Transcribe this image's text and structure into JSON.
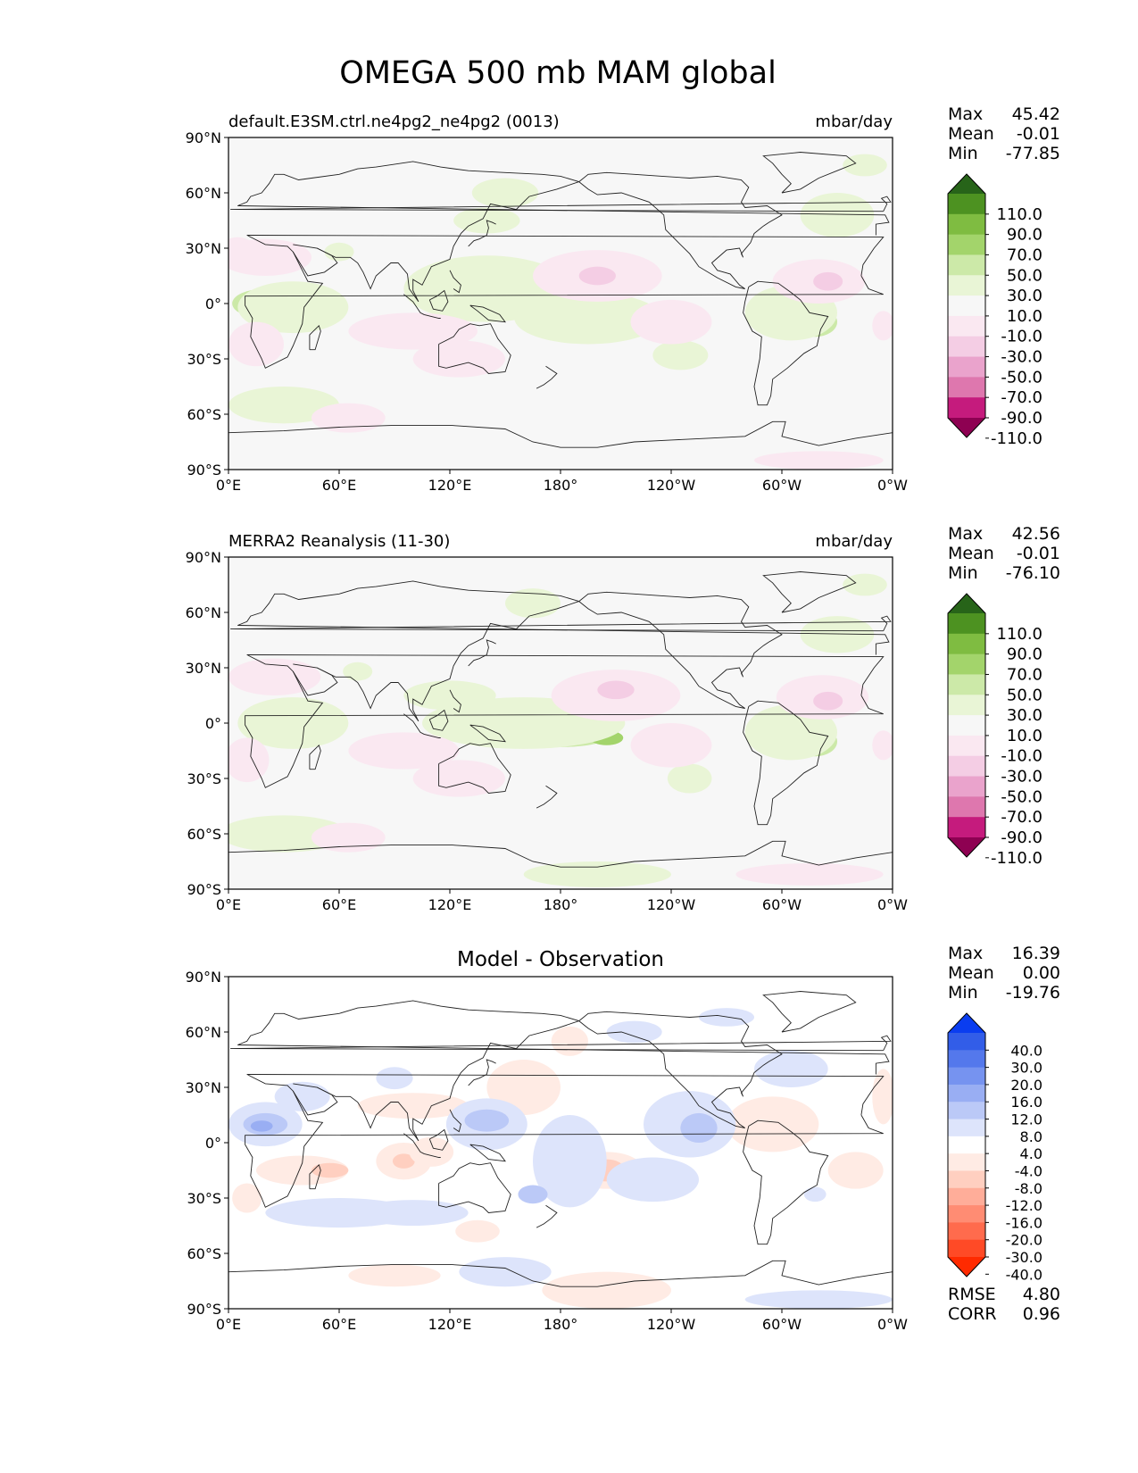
{
  "title": "OMEGA 500 mb MAM global",
  "lat_ticks": [
    "90°N",
    "60°N",
    "30°N",
    "0°",
    "30°S",
    "60°S",
    "90°S"
  ],
  "lon_ticks": [
    "0°E",
    "60°E",
    "120°E",
    "180°",
    "120°W",
    "60°W",
    "0°W"
  ],
  "stat_labels": {
    "max": "Max",
    "mean": "Mean",
    "min": "Min",
    "rmse": "RMSE",
    "corr": "CORR"
  },
  "panels": [
    {
      "title_left": "default.E3SM.ctrl.ne4pg2_ne4pg2 (0013)",
      "title_center": "",
      "units": "mbar/day",
      "stats": {
        "max": "45.42",
        "mean": "-0.01",
        "min": "-77.85"
      },
      "colorbar": {
        "labels": [
          "110.0",
          "90.0",
          "70.0",
          "50.0",
          "30.0",
          "10.0",
          "-10.0",
          "-30.0",
          "-50.0",
          "-70.0",
          "-90.0",
          "-110.0"
        ],
        "colors": [
          "#8e0152",
          "#c51b7d",
          "#de77ae",
          "#eaa3cc",
          "#f4cde4",
          "#fae8f1",
          "#f7f7f7",
          "#e9f5d6",
          "#cce9a8",
          "#a3d46b",
          "#7fbc41",
          "#4d9221",
          "#276419"
        ]
      },
      "regions": [
        {
          "kind": "ascent",
          "level": 2,
          "lon": 20,
          "lat": 0,
          "rlon": 18,
          "rlat": 8
        },
        {
          "kind": "ascent",
          "level": 3,
          "lon": 24,
          "lat": 0,
          "rlon": 7,
          "rlat": 3
        },
        {
          "kind": "ascent",
          "level": 1,
          "lon": 35,
          "lat": -2,
          "rlon": 30,
          "rlat": 14
        },
        {
          "kind": "ascent",
          "level": 2,
          "lon": 145,
          "lat": 5,
          "rlon": 25,
          "rlat": 10
        },
        {
          "kind": "ascent",
          "level": 1,
          "lon": 140,
          "lat": 8,
          "rlon": 45,
          "rlat": 18
        },
        {
          "kind": "ascent",
          "level": 2,
          "lon": 200,
          "lat": -8,
          "rlon": 22,
          "rlat": 7
        },
        {
          "kind": "ascent",
          "level": 3,
          "lon": 205,
          "lat": -8,
          "rlon": 9,
          "rlat": 4
        },
        {
          "kind": "ascent",
          "level": 1,
          "lon": 195,
          "lat": -8,
          "rlon": 40,
          "rlat": 14
        },
        {
          "kind": "ascent",
          "level": 2,
          "lon": 318,
          "lat": -10,
          "rlon": 12,
          "rlat": 8
        },
        {
          "kind": "ascent",
          "level": 3,
          "lon": 320,
          "lat": -10,
          "rlon": 5,
          "rlat": 3
        },
        {
          "kind": "ascent",
          "level": 1,
          "lon": 305,
          "lat": -5,
          "rlon": 25,
          "rlat": 15
        },
        {
          "kind": "ascent",
          "level": 1,
          "lon": 30,
          "lat": -55,
          "rlon": 30,
          "rlat": 10
        },
        {
          "kind": "ascent",
          "level": 1,
          "lon": 140,
          "lat": 45,
          "rlon": 18,
          "rlat": 7
        },
        {
          "kind": "ascent",
          "level": 1,
          "lon": 60,
          "lat": 28,
          "rlon": 8,
          "rlat": 5
        },
        {
          "kind": "ascent",
          "level": 1,
          "lon": 150,
          "lat": 60,
          "rlon": 18,
          "rlat": 8
        },
        {
          "kind": "ascent",
          "level": 1,
          "lon": 245,
          "lat": -28,
          "rlon": 15,
          "rlat": 8
        },
        {
          "kind": "ascent",
          "level": 1,
          "lon": 330,
          "lat": 48,
          "rlon": 20,
          "rlat": 12
        },
        {
          "kind": "ascent",
          "level": 1,
          "lon": 345,
          "lat": 75,
          "rlon": 12,
          "rlat": 6
        },
        {
          "kind": "descent",
          "level": 1,
          "lon": 15,
          "lat": -22,
          "rlon": 15,
          "rlat": 12
        },
        {
          "kind": "descent",
          "level": 1,
          "lon": 20,
          "lat": 25,
          "rlon": 25,
          "rlat": 10
        },
        {
          "kind": "descent",
          "level": 1,
          "lon": 100,
          "lat": -15,
          "rlon": 35,
          "rlat": 10
        },
        {
          "kind": "descent",
          "level": 1,
          "lon": 125,
          "lat": -30,
          "rlon": 25,
          "rlat": 10
        },
        {
          "kind": "descent",
          "level": 1,
          "lon": 200,
          "lat": 15,
          "rlon": 35,
          "rlat": 14
        },
        {
          "kind": "descent",
          "level": 2,
          "lon": 200,
          "lat": 15,
          "rlon": 10,
          "rlat": 5
        },
        {
          "kind": "descent",
          "level": 1,
          "lon": 240,
          "lat": -10,
          "rlon": 22,
          "rlat": 12
        },
        {
          "kind": "descent",
          "level": 1,
          "lon": 320,
          "lat": 12,
          "rlon": 25,
          "rlat": 12
        },
        {
          "kind": "descent",
          "level": 2,
          "lon": 325,
          "lat": 12,
          "rlon": 8,
          "rlat": 5
        },
        {
          "kind": "descent",
          "level": 1,
          "lon": 65,
          "lat": -62,
          "rlon": 20,
          "rlat": 8
        },
        {
          "kind": "descent",
          "level": 1,
          "lon": 320,
          "lat": -85,
          "rlon": 35,
          "rlat": 5
        },
        {
          "kind": "descent",
          "level": 1,
          "lon": 5,
          "lat": 28,
          "rlon": 10,
          "rlat": 8
        },
        {
          "kind": "descent",
          "level": 1,
          "lon": 355,
          "lat": -12,
          "rlon": 6,
          "rlat": 8
        }
      ]
    },
    {
      "title_left": "MERRA2 Reanalysis (11-30)",
      "title_center": "",
      "units": "mbar/day",
      "stats": {
        "max": "42.56",
        "mean": "-0.01",
        "min": "-76.10"
      },
      "colorbar": {
        "labels": [
          "110.0",
          "90.0",
          "70.0",
          "50.0",
          "30.0",
          "10.0",
          "-10.0",
          "-30.0",
          "-50.0",
          "-70.0",
          "-90.0",
          "-110.0"
        ],
        "colors": [
          "#8e0152",
          "#c51b7d",
          "#de77ae",
          "#eaa3cc",
          "#f4cde4",
          "#fae8f1",
          "#f7f7f7",
          "#e9f5d6",
          "#cce9a8",
          "#a3d46b",
          "#7fbc41",
          "#4d9221",
          "#276419"
        ]
      },
      "regions": [
        {
          "kind": "ascent",
          "level": 2,
          "lon": 28,
          "lat": 0,
          "rlon": 15,
          "rlat": 8
        },
        {
          "kind": "ascent",
          "level": 3,
          "lon": 28,
          "lat": -2,
          "rlon": 5,
          "rlat": 3
        },
        {
          "kind": "ascent",
          "level": 1,
          "lon": 35,
          "lat": 0,
          "rlon": 30,
          "rlat": 14
        },
        {
          "kind": "ascent",
          "level": 2,
          "lon": 180,
          "lat": -5,
          "rlon": 30,
          "rlat": 8
        },
        {
          "kind": "ascent",
          "level": 3,
          "lon": 205,
          "lat": -8,
          "rlon": 9,
          "rlat": 4
        },
        {
          "kind": "ascent",
          "level": 1,
          "lon": 160,
          "lat": 0,
          "rlon": 55,
          "rlat": 14
        },
        {
          "kind": "ascent",
          "level": 1,
          "lon": 120,
          "lat": 15,
          "rlon": 25,
          "rlat": 8
        },
        {
          "kind": "ascent",
          "level": 2,
          "lon": 318,
          "lat": -10,
          "rlon": 12,
          "rlat": 8
        },
        {
          "kind": "ascent",
          "level": 3,
          "lon": 320,
          "lat": -10,
          "rlon": 5,
          "rlat": 3
        },
        {
          "kind": "ascent",
          "level": 1,
          "lon": 305,
          "lat": -5,
          "rlon": 25,
          "rlat": 15
        },
        {
          "kind": "ascent",
          "level": 1,
          "lon": 30,
          "lat": -60,
          "rlon": 35,
          "rlat": 10
        },
        {
          "kind": "ascent",
          "level": 1,
          "lon": 165,
          "lat": 65,
          "rlon": 15,
          "rlat": 8
        },
        {
          "kind": "ascent",
          "level": 1,
          "lon": 70,
          "lat": 28,
          "rlon": 8,
          "rlat": 5
        },
        {
          "kind": "ascent",
          "level": 1,
          "lon": 250,
          "lat": -30,
          "rlon": 12,
          "rlat": 8
        },
        {
          "kind": "ascent",
          "level": 1,
          "lon": 330,
          "lat": 48,
          "rlon": 20,
          "rlat": 10
        },
        {
          "kind": "ascent",
          "level": 1,
          "lon": 345,
          "lat": 75,
          "rlon": 12,
          "rlat": 6
        },
        {
          "kind": "ascent",
          "level": 1,
          "lon": 200,
          "lat": -82,
          "rlon": 40,
          "rlat": 7
        },
        {
          "kind": "descent",
          "level": 1,
          "lon": 10,
          "lat": -20,
          "rlon": 12,
          "rlat": 12
        },
        {
          "kind": "descent",
          "level": 1,
          "lon": 25,
          "lat": 25,
          "rlon": 25,
          "rlat": 10
        },
        {
          "kind": "descent",
          "level": 1,
          "lon": 95,
          "lat": -15,
          "rlon": 30,
          "rlat": 10
        },
        {
          "kind": "descent",
          "level": 1,
          "lon": 125,
          "lat": -30,
          "rlon": 25,
          "rlat": 10
        },
        {
          "kind": "descent",
          "level": 1,
          "lon": 210,
          "lat": 15,
          "rlon": 35,
          "rlat": 14
        },
        {
          "kind": "descent",
          "level": 2,
          "lon": 210,
          "lat": 18,
          "rlon": 10,
          "rlat": 5
        },
        {
          "kind": "descent",
          "level": 1,
          "lon": 240,
          "lat": -12,
          "rlon": 22,
          "rlat": 12
        },
        {
          "kind": "descent",
          "level": 1,
          "lon": 322,
          "lat": 14,
          "rlon": 25,
          "rlat": 12
        },
        {
          "kind": "descent",
          "level": 2,
          "lon": 325,
          "lat": 12,
          "rlon": 8,
          "rlat": 5
        },
        {
          "kind": "descent",
          "level": 1,
          "lon": 65,
          "lat": -62,
          "rlon": 20,
          "rlat": 8
        },
        {
          "kind": "descent",
          "level": 1,
          "lon": 315,
          "lat": -82,
          "rlon": 40,
          "rlat": 6
        },
        {
          "kind": "descent",
          "level": 1,
          "lon": 355,
          "lat": -12,
          "rlon": 6,
          "rlat": 8
        }
      ]
    },
    {
      "title_left": "",
      "title_center": "Model - Observation",
      "units": "",
      "stats": {
        "max": "16.39",
        "mean": "0.00",
        "min": "-19.76",
        "rmse": "4.80",
        "corr": "0.96"
      },
      "colorbar": {
        "labels": [
          "40.0",
          "30.0",
          "20.0",
          "16.0",
          "12.0",
          "8.0",
          "4.0",
          "-4.0",
          "-8.0",
          "-12.0",
          "-16.0",
          "-20.0",
          "-30.0",
          "-40.0"
        ],
        "colors": [
          "#ff2a00",
          "#ff4a26",
          "#ff6b4d",
          "#ff8c73",
          "#ffad99",
          "#ffcfc0",
          "#ffebe4",
          "#ffffff",
          "#dde4fb",
          "#bbc9f7",
          "#99aef3",
          "#7693f0",
          "#5478ec",
          "#325de8",
          "#0a3df0"
        ]
      },
      "regions": [
        {
          "kind": "descent",
          "level": 1,
          "lon": 40,
          "lat": -15,
          "rlon": 25,
          "rlat": 8
        },
        {
          "kind": "descent",
          "level": 2,
          "lon": 55,
          "lat": -15,
          "rlon": 10,
          "rlat": 4
        },
        {
          "kind": "descent",
          "level": 1,
          "lon": 95,
          "lat": -10,
          "rlon": 15,
          "rlat": 10
        },
        {
          "kind": "descent",
          "level": 2,
          "lon": 95,
          "lat": -10,
          "rlon": 6,
          "rlat": 4
        },
        {
          "kind": "descent",
          "level": 1,
          "lon": 100,
          "lat": 20,
          "rlon": 30,
          "rlat": 7
        },
        {
          "kind": "descent",
          "level": 1,
          "lon": 110,
          "lat": -5,
          "rlon": 12,
          "rlat": 8
        },
        {
          "kind": "descent",
          "level": 1,
          "lon": 160,
          "lat": 30,
          "rlon": 20,
          "rlat": 15
        },
        {
          "kind": "descent",
          "level": 1,
          "lon": 205,
          "lat": -15,
          "rlon": 20,
          "rlat": 10
        },
        {
          "kind": "descent",
          "level": 2,
          "lon": 205,
          "lat": -15,
          "rlon": 10,
          "rlat": 6
        },
        {
          "kind": "descent",
          "level": 1,
          "lon": 295,
          "lat": 10,
          "rlon": 25,
          "rlat": 15
        },
        {
          "kind": "descent",
          "level": 1,
          "lon": 205,
          "lat": -80,
          "rlon": 35,
          "rlat": 10
        },
        {
          "kind": "descent",
          "level": 1,
          "lon": 90,
          "lat": -72,
          "rlon": 25,
          "rlat": 6
        },
        {
          "kind": "descent",
          "level": 1,
          "lon": 340,
          "lat": -15,
          "rlon": 15,
          "rlat": 10
        },
        {
          "kind": "descent",
          "level": 1,
          "lon": 355,
          "lat": 25,
          "rlon": 6,
          "rlat": 15
        },
        {
          "kind": "descent",
          "level": 1,
          "lon": 135,
          "lat": -48,
          "rlon": 12,
          "rlat": 6
        },
        {
          "kind": "descent",
          "level": 1,
          "lon": 185,
          "lat": 55,
          "rlon": 10,
          "rlat": 8
        },
        {
          "kind": "descent",
          "level": 1,
          "lon": 10,
          "lat": -30,
          "rlon": 8,
          "rlat": 8
        },
        {
          "kind": "ascent",
          "level": 1,
          "lon": 20,
          "lat": 10,
          "rlon": 20,
          "rlat": 12
        },
        {
          "kind": "ascent",
          "level": 2,
          "lon": 20,
          "lat": 10,
          "rlon": 12,
          "rlat": 6
        },
        {
          "kind": "ascent",
          "level": 3,
          "lon": 18,
          "lat": 9,
          "rlon": 6,
          "rlat": 3
        },
        {
          "kind": "ascent",
          "level": 1,
          "lon": 140,
          "lat": 10,
          "rlon": 22,
          "rlat": 14
        },
        {
          "kind": "ascent",
          "level": 2,
          "lon": 140,
          "lat": 12,
          "rlon": 12,
          "rlat": 6
        },
        {
          "kind": "ascent",
          "level": 1,
          "lon": 185,
          "lat": -10,
          "rlon": 20,
          "rlat": 25
        },
        {
          "kind": "ascent",
          "level": 1,
          "lon": 250,
          "lat": 10,
          "rlon": 25,
          "rlat": 18
        },
        {
          "kind": "ascent",
          "level": 2,
          "lon": 255,
          "lat": 8,
          "rlon": 10,
          "rlat": 8
        },
        {
          "kind": "ascent",
          "level": 1,
          "lon": 230,
          "lat": -20,
          "rlon": 25,
          "rlat": 12
        },
        {
          "kind": "ascent",
          "level": 1,
          "lon": 60,
          "lat": -38,
          "rlon": 40,
          "rlat": 8
        },
        {
          "kind": "ascent",
          "level": 1,
          "lon": 100,
          "lat": -38,
          "rlon": 30,
          "rlat": 7
        },
        {
          "kind": "ascent",
          "level": 2,
          "lon": 165,
          "lat": -28,
          "rlon": 8,
          "rlat": 5
        },
        {
          "kind": "ascent",
          "level": 1,
          "lon": 150,
          "lat": -70,
          "rlon": 25,
          "rlat": 8
        },
        {
          "kind": "ascent",
          "level": 1,
          "lon": 320,
          "lat": -85,
          "rlon": 40,
          "rlat": 5
        },
        {
          "kind": "ascent",
          "level": 1,
          "lon": 305,
          "lat": 40,
          "rlon": 20,
          "rlat": 10
        },
        {
          "kind": "ascent",
          "level": 1,
          "lon": 40,
          "lat": 25,
          "rlon": 15,
          "rlat": 8
        },
        {
          "kind": "ascent",
          "level": 1,
          "lon": 90,
          "lat": 35,
          "rlon": 10,
          "rlat": 6
        },
        {
          "kind": "ascent",
          "level": 1,
          "lon": 220,
          "lat": 60,
          "rlon": 15,
          "rlat": 6
        },
        {
          "kind": "ascent",
          "level": 1,
          "lon": 270,
          "lat": 68,
          "rlon": 15,
          "rlat": 5
        },
        {
          "kind": "ascent",
          "level": 1,
          "lon": 318,
          "lat": -28,
          "rlon": 6,
          "rlat": 4
        }
      ]
    }
  ]
}
